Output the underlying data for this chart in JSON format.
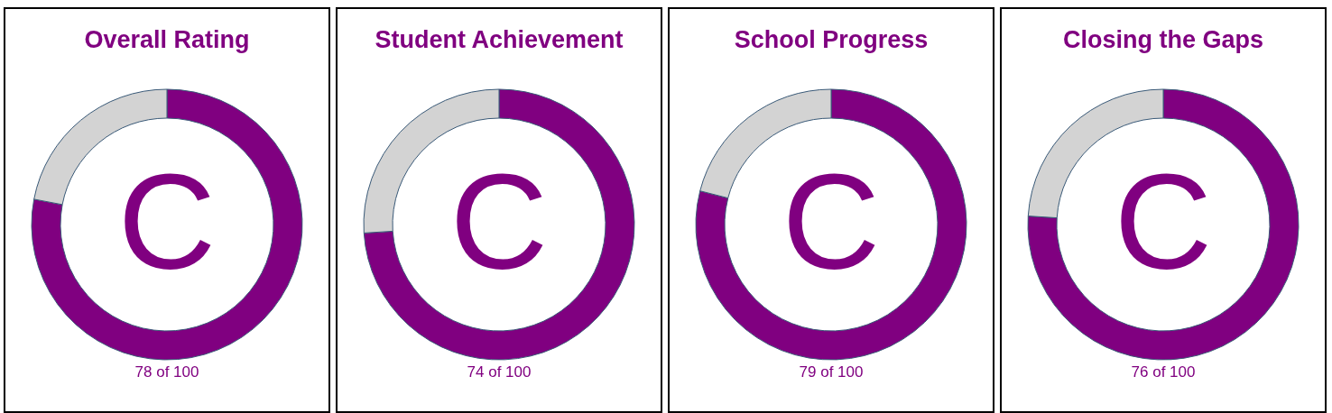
{
  "chart_data": [
    {
      "type": "donut",
      "title": "Overall Rating",
      "categories": [
        null,
        null
      ],
      "values": [
        78,
        22
      ],
      "colors": [
        "#800080",
        "#d3d3d3"
      ],
      "annotations": [
        "C",
        "78 of 100"
      ]
    },
    {
      "type": "donut",
      "title": "Student Achievement",
      "categories": [
        null,
        null
      ],
      "values": [
        74,
        26
      ],
      "colors": [
        "#800080",
        "#d3d3d3"
      ],
      "annotations": [
        "C",
        "74 of 100"
      ]
    },
    {
      "type": "donut",
      "title": "School Progress",
      "categories": [
        null,
        null
      ],
      "values": [
        79,
        21
      ],
      "colors": [
        "#800080",
        "#d3d3d3"
      ],
      "annotations": [
        "C",
        "79 of 100"
      ]
    },
    {
      "type": "donut",
      "title": "Closing the Gaps",
      "categories": [
        null,
        null
      ],
      "values": [
        76,
        24
      ],
      "colors": [
        "#800080",
        "#d3d3d3"
      ],
      "annotations": [
        "C",
        "76 of 100"
      ]
    }
  ]
}
